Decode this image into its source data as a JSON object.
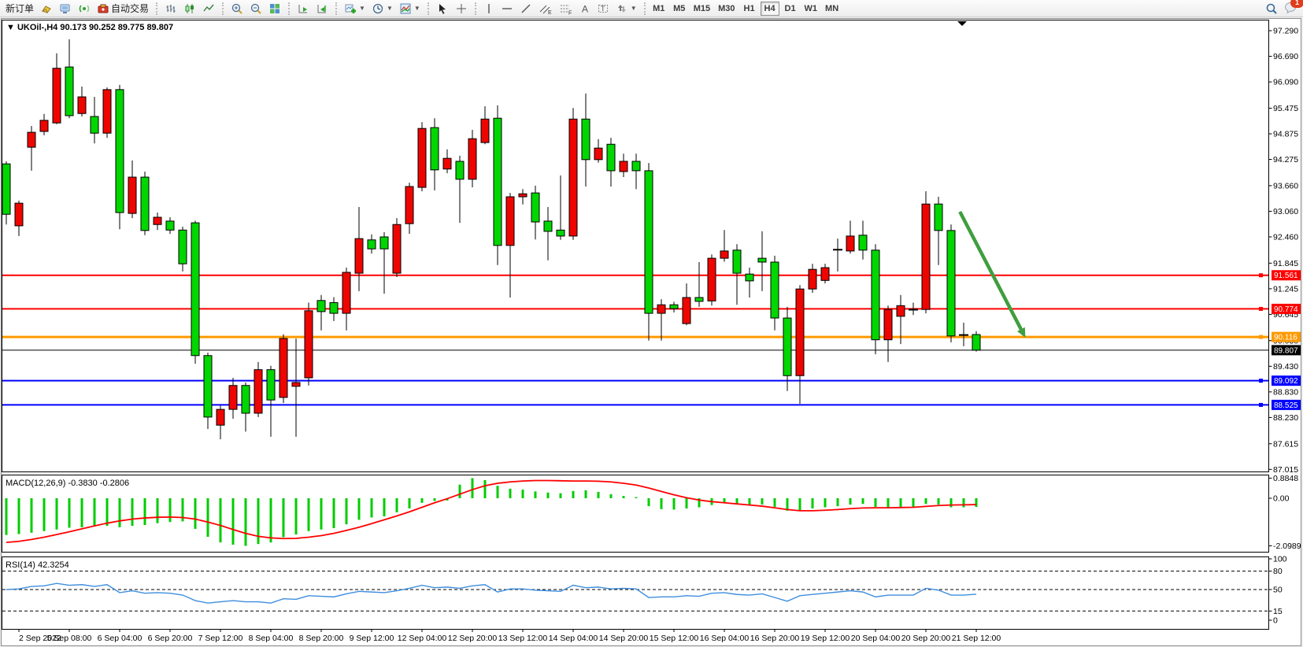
{
  "toolbar": {
    "new_order_label": "新订单",
    "autotrade_label": "自动交易",
    "timeframes": [
      "M1",
      "M5",
      "M15",
      "M30",
      "H1",
      "H4",
      "D1",
      "W1",
      "MN"
    ],
    "active_timeframe": "H4",
    "notification_count": "1",
    "icon_names": [
      "gold-icon",
      "market-watch-icon",
      "signals-icon",
      "autotrade-icon",
      "bar-chart-icon",
      "candlestick-icon",
      "line-chart-icon",
      "zoom-in-icon",
      "zoom-out-icon",
      "tile-windows-icon",
      "auto-scroll-icon",
      "chart-shift-icon",
      "add-indicator-icon",
      "periods-clock-icon",
      "templates-icon",
      "cursor-icon",
      "crosshair-icon",
      "vertical-line-icon",
      "horizontal-line-icon",
      "trendline-icon",
      "equidistant-channel-icon",
      "fibonacci-icon",
      "text-icon",
      "text-label-icon",
      "arrows-icon",
      "search-icon",
      "chat-icon"
    ]
  },
  "chart": {
    "title_symbol": "UKOil-,H4",
    "title_ohlc": "90.173 90.252 89.775 89.807",
    "macd_label": "MACD(12,26,9)",
    "macd_values_text": "-0.3830 -0.2806",
    "rsi_label": "RSI(14)",
    "rsi_value_text": "42.3254"
  },
  "chart_data": {
    "type": "candlestick",
    "title": "UKOil-,H4 90.173 90.252 89.775 89.807",
    "price_axis_ticks": [
      "97.290",
      "96.690",
      "96.090",
      "95.475",
      "94.875",
      "94.275",
      "93.660",
      "93.060",
      "92.460",
      "91.845",
      "91.245",
      "90.645",
      "90.030",
      "89.430",
      "88.830",
      "88.230",
      "87.615",
      "87.015"
    ],
    "ylim": [
      87.015,
      97.29
    ],
    "colors": {
      "up": "#ee0500",
      "down": "#00d600",
      "wick": "#000000",
      "macd_hist": "#00cc00",
      "macd_signal": "#ff0000",
      "rsi_line": "#3e8ede",
      "arrow": "#3f9e3f",
      "line_red": "#ff0000",
      "line_orange": "#ff9900",
      "line_blue": "#0000ff",
      "line_black": "#000000"
    },
    "candles": [
      [
        94.17,
        94.23,
        92.75,
        92.99
      ],
      [
        92.72,
        93.31,
        92.48,
        93.25
      ],
      [
        94.56,
        95.06,
        94.01,
        94.91
      ],
      [
        94.93,
        95.34,
        94.84,
        95.19
      ],
      [
        95.13,
        96.76,
        95.1,
        96.41
      ],
      [
        96.44,
        97.09,
        95.24,
        95.3
      ],
      [
        95.35,
        95.98,
        95.28,
        95.74
      ],
      [
        95.28,
        95.74,
        94.65,
        94.89
      ],
      [
        94.89,
        95.96,
        94.78,
        95.91
      ],
      [
        95.91,
        96.02,
        92.64,
        93.03
      ],
      [
        93.01,
        94.25,
        92.9,
        93.86
      ],
      [
        93.86,
        93.99,
        92.5,
        92.61
      ],
      [
        92.75,
        93.03,
        92.62,
        92.92
      ],
      [
        92.83,
        92.92,
        92.53,
        92.62
      ],
      [
        92.62,
        92.7,
        91.65,
        91.83
      ],
      [
        92.79,
        92.84,
        89.49,
        89.68
      ],
      [
        89.68,
        89.75,
        87.96,
        88.24
      ],
      [
        88.05,
        88.51,
        87.72,
        88.42
      ],
      [
        88.42,
        89.16,
        88.2,
        88.98
      ],
      [
        88.98,
        89.05,
        87.9,
        88.33
      ],
      [
        88.33,
        89.53,
        88.24,
        89.35
      ],
      [
        89.35,
        89.44,
        87.78,
        88.64
      ],
      [
        88.7,
        90.18,
        88.57,
        90.08
      ],
      [
        88.96,
        90.08,
        87.78,
        89.05
      ],
      [
        89.16,
        90.92,
        88.98,
        90.73
      ],
      [
        90.97,
        91.1,
        90.27,
        90.71
      ],
      [
        90.92,
        91.05,
        90.49,
        90.67
      ],
      [
        90.67,
        91.74,
        90.27,
        91.63
      ],
      [
        91.61,
        93.16,
        91.19,
        92.42
      ],
      [
        92.39,
        92.52,
        92.07,
        92.18
      ],
      [
        92.46,
        92.57,
        91.13,
        92.18
      ],
      [
        91.61,
        92.9,
        91.52,
        92.75
      ],
      [
        92.77,
        93.73,
        92.53,
        93.64
      ],
      [
        93.62,
        95.15,
        93.53,
        95.0
      ],
      [
        95.02,
        95.24,
        93.55,
        94.03
      ],
      [
        94.05,
        94.51,
        93.95,
        94.3
      ],
      [
        94.23,
        94.36,
        92.79,
        93.81
      ],
      [
        93.81,
        94.97,
        93.62,
        94.76
      ],
      [
        94.67,
        95.52,
        94.63,
        95.22
      ],
      [
        95.24,
        95.54,
        91.8,
        92.26
      ],
      [
        92.26,
        93.49,
        91.04,
        93.4
      ],
      [
        93.4,
        93.58,
        93.22,
        93.47
      ],
      [
        93.49,
        93.66,
        92.4,
        92.81
      ],
      [
        92.83,
        93.16,
        91.91,
        92.59
      ],
      [
        92.62,
        93.9,
        92.39,
        92.48
      ],
      [
        92.48,
        95.48,
        92.39,
        95.22
      ],
      [
        95.22,
        95.82,
        93.64,
        94.27
      ],
      [
        94.27,
        94.75,
        94.2,
        94.54
      ],
      [
        94.63,
        94.78,
        93.64,
        94.01
      ],
      [
        93.99,
        94.41,
        93.86,
        94.23
      ],
      [
        94.23,
        94.41,
        93.58,
        94.01
      ],
      [
        94.01,
        94.19,
        90.03,
        90.67
      ],
      [
        90.67,
        91.0,
        90.03,
        90.87
      ],
      [
        90.87,
        90.94,
        90.69,
        90.78
      ],
      [
        90.43,
        91.37,
        90.39,
        91.04
      ],
      [
        91.04,
        91.87,
        90.82,
        90.95
      ],
      [
        90.96,
        92.05,
        90.85,
        91.96
      ],
      [
        91.96,
        92.62,
        91.88,
        92.13
      ],
      [
        92.15,
        92.29,
        90.87,
        91.61
      ],
      [
        91.59,
        91.74,
        91.04,
        91.43
      ],
      [
        91.96,
        92.59,
        91.19,
        91.87
      ],
      [
        91.87,
        92.02,
        90.27,
        90.56
      ],
      [
        90.56,
        90.82,
        88.85,
        89.21
      ],
      [
        89.21,
        91.33,
        88.55,
        91.24
      ],
      [
        91.24,
        91.83,
        91.15,
        91.7
      ],
      [
        91.44,
        91.83,
        91.37,
        91.74
      ],
      [
        92.15,
        92.42,
        91.65,
        92.17
      ],
      [
        92.13,
        92.84,
        92.07,
        92.48
      ],
      [
        92.5,
        92.84,
        91.93,
        92.15
      ],
      [
        92.15,
        92.29,
        89.71,
        90.05
      ],
      [
        90.05,
        90.85,
        89.53,
        90.76
      ],
      [
        90.6,
        91.1,
        89.95,
        90.85
      ],
      [
        90.75,
        90.92,
        90.63,
        90.76
      ],
      [
        90.76,
        93.53,
        90.67,
        93.23
      ],
      [
        93.23,
        93.4,
        91.8,
        92.61
      ],
      [
        92.61,
        92.75,
        89.99,
        90.14
      ],
      [
        90.17,
        90.45,
        89.9,
        90.155
      ],
      [
        90.173,
        90.252,
        89.775,
        89.807
      ]
    ],
    "hlines": [
      {
        "label": "91.561",
        "price": 91.561,
        "color": "#ff0000",
        "width": 2,
        "handle": true
      },
      {
        "label": "90.774",
        "price": 90.774,
        "color": "#ff0000",
        "width": 2,
        "handle": true
      },
      {
        "label": "90.116",
        "price": 90.116,
        "color": "#ff9900",
        "width": 3,
        "handle": true
      },
      {
        "label": "89.807",
        "price": 89.807,
        "color": "#000000",
        "width": 1,
        "handle": false
      },
      {
        "label": "89.092",
        "price": 89.092,
        "color": "#0000ff",
        "width": 2,
        "handle": true
      },
      {
        "label": "88.525",
        "price": 88.525,
        "color": "#0000ff",
        "width": 2,
        "handle": true
      }
    ],
    "arrow": {
      "from_bar": 75.7,
      "from_price": 93.05,
      "to_bar": 80.9,
      "to_price": 90.1
    },
    "macd": {
      "axis_ticks": [
        "0.8848",
        "0.00",
        "-2.0989"
      ],
      "hist": [
        -1.62,
        -1.58,
        -1.52,
        -1.45,
        -1.38,
        -1.3,
        -1.28,
        -1.25,
        -1.22,
        -1.28,
        -1.22,
        -1.18,
        -1.1,
        -1.05,
        -1.02,
        -1.35,
        -1.7,
        -1.95,
        -2.05,
        -2.1,
        -2.02,
        -1.95,
        -1.72,
        -1.6,
        -1.45,
        -1.38,
        -1.32,
        -1.15,
        -0.95,
        -0.85,
        -0.8,
        -0.62,
        -0.45,
        -0.2,
        -0.12,
        -0.1,
        0.6,
        0.8848,
        0.8,
        0.55,
        0.42,
        0.38,
        0.3,
        0.25,
        0.22,
        0.32,
        0.35,
        0.28,
        0.18,
        0.1,
        0.05,
        -0.35,
        -0.48,
        -0.5,
        -0.45,
        -0.4,
        -0.3,
        -0.22,
        -0.25,
        -0.3,
        -0.28,
        -0.38,
        -0.55,
        -0.52,
        -0.45,
        -0.4,
        -0.35,
        -0.28,
        -0.25,
        -0.38,
        -0.42,
        -0.4,
        -0.38,
        -0.25,
        -0.28,
        -0.4,
        -0.4,
        -0.383
      ],
      "signal": [
        -1.95,
        -1.9,
        -1.82,
        -1.72,
        -1.6,
        -1.48,
        -1.35,
        -1.22,
        -1.1,
        -1.0,
        -0.92,
        -0.87,
        -0.84,
        -0.83,
        -0.85,
        -0.92,
        -1.05,
        -1.2,
        -1.38,
        -1.55,
        -1.68,
        -1.75,
        -1.78,
        -1.77,
        -1.72,
        -1.65,
        -1.55,
        -1.42,
        -1.28,
        -1.12,
        -0.95,
        -0.78,
        -0.6,
        -0.4,
        -0.2,
        -0.02,
        0.18,
        0.38,
        0.55,
        0.66,
        0.72,
        0.76,
        0.78,
        0.78,
        0.77,
        0.76,
        0.76,
        0.75,
        0.72,
        0.66,
        0.58,
        0.45,
        0.3,
        0.15,
        0.02,
        -0.08,
        -0.15,
        -0.2,
        -0.25,
        -0.3,
        -0.35,
        -0.42,
        -0.5,
        -0.55,
        -0.55,
        -0.53,
        -0.5,
        -0.46,
        -0.43,
        -0.42,
        -0.42,
        -0.41,
        -0.4,
        -0.36,
        -0.32,
        -0.3,
        -0.29,
        -0.2806
      ]
    },
    "rsi": {
      "axis_ticks": [
        "100",
        "80",
        "50",
        "15",
        "0"
      ],
      "dashed_levels": [
        80,
        50,
        15
      ],
      "values": [
        50,
        51,
        55,
        56,
        60,
        57,
        58,
        55,
        58,
        45,
        48,
        44,
        45,
        44,
        41,
        32,
        28,
        30,
        32,
        30,
        30,
        28,
        35,
        34,
        40,
        39,
        38,
        43,
        47,
        46,
        45,
        48,
        52,
        57,
        53,
        54,
        52,
        56,
        58,
        46,
        51,
        51,
        49,
        48,
        47,
        57,
        53,
        54,
        51,
        52,
        51,
        37,
        38,
        38,
        40,
        39,
        44,
        45,
        42,
        41,
        43,
        37,
        31,
        40,
        42,
        44,
        46,
        48,
        46,
        38,
        41,
        41,
        41,
        52,
        49,
        41,
        41,
        42.33
      ]
    },
    "x_axis_labels": [
      "2 Sep 2022",
      "5 Sep 08:00",
      "6 Sep 04:00",
      "6 Sep 20:00",
      "7 Sep 12:00",
      "8 Sep 04:00",
      "8 Sep 20:00",
      "9 Sep 12:00",
      "12 Sep 04:00",
      "12 Sep 20:00",
      "13 Sep 12:00",
      "14 Sep 04:00",
      "14 Sep 20:00",
      "15 Sep 12:00",
      "16 Sep 04:00",
      "16 Sep 20:00",
      "19 Sep 12:00",
      "20 Sep 04:00",
      "20 Sep 20:00",
      "21 Sep 12:00"
    ]
  }
}
